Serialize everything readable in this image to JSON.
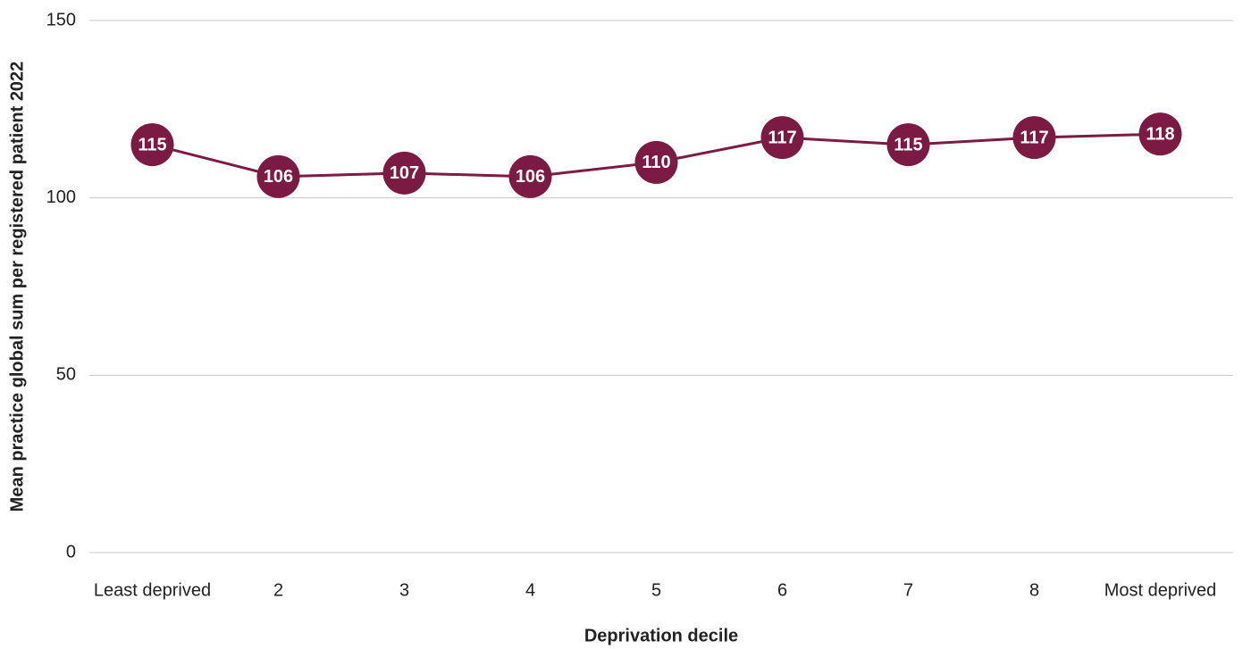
{
  "chart_data": {
    "type": "line",
    "y_label": "Mean practice global sum per registered patient 2022",
    "x_label": "Deprivation decile",
    "categories": [
      "Least deprived",
      "2",
      "3",
      "4",
      "5",
      "6",
      "7",
      "8",
      "Most deprived"
    ],
    "values": [
      115,
      106,
      107,
      106,
      110,
      117,
      115,
      117,
      118
    ],
    "color": "#7b1a43",
    "ylim": [
      0,
      150
    ],
    "yticks": [
      0,
      50,
      100,
      150
    ],
    "grid": true
  }
}
